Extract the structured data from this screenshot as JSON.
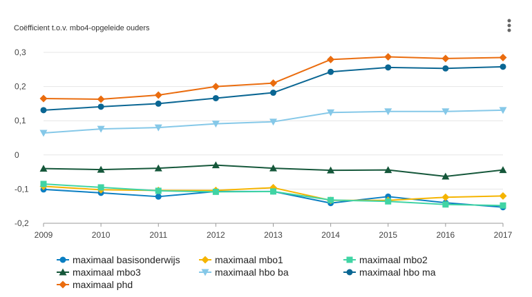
{
  "chart_data": {
    "type": "line",
    "ylabel": "Coëfficient t.o.v. mbo4-opgeleide ouders",
    "x": [
      2009,
      2010,
      2011,
      2012,
      2013,
      2014,
      2015,
      2016,
      2017
    ],
    "x_tick_labels": [
      "2009",
      "2010",
      "2011",
      "2012",
      "2013",
      "2014",
      "2015",
      "2016",
      "2017"
    ],
    "ylim": [
      -0.2,
      0.3
    ],
    "y_ticks": [
      -0.2,
      -0.1,
      0,
      0.1,
      0.2,
      0.3
    ],
    "y_tick_labels": [
      "-0,2",
      "-0,1",
      "0",
      "0,1",
      "0,2",
      "0,3"
    ],
    "grid": "horizontal",
    "legend_position": "bottom",
    "series": [
      {
        "name": "maximaal basisonderwijs",
        "color": "#0a7ec2",
        "marker": "circle",
        "values": [
          -0.101,
          -0.111,
          -0.122,
          -0.107,
          -0.107,
          -0.141,
          -0.122,
          -0.14,
          -0.153
        ]
      },
      {
        "name": "maximaal mbo1",
        "color": "#f5b400",
        "marker": "diamond",
        "values": [
          -0.092,
          -0.102,
          -0.104,
          -0.104,
          -0.096,
          -0.133,
          -0.133,
          -0.124,
          -0.12
        ]
      },
      {
        "name": "maximaal mbo2",
        "color": "#40d4a4",
        "marker": "square",
        "values": [
          -0.085,
          -0.095,
          -0.105,
          -0.108,
          -0.107,
          -0.132,
          -0.136,
          -0.145,
          -0.148
        ]
      },
      {
        "name": "maximaal mbo3",
        "color": "#15573a",
        "marker": "triangle-up",
        "values": [
          -0.04,
          -0.043,
          -0.039,
          -0.03,
          -0.039,
          -0.045,
          -0.044,
          -0.063,
          -0.044
        ]
      },
      {
        "name": "maximaal hbo ba",
        "color": "#85c8e8",
        "marker": "triangle-down",
        "values": [
          0.064,
          0.076,
          0.08,
          0.091,
          0.097,
          0.124,
          0.127,
          0.127,
          0.131
        ]
      },
      {
        "name": "maximaal hbo ma",
        "color": "#0a6693",
        "marker": "circle",
        "values": [
          0.131,
          0.141,
          0.15,
          0.166,
          0.182,
          0.243,
          0.256,
          0.253,
          0.258
        ]
      },
      {
        "name": "maximaal phd",
        "color": "#ea6c0e",
        "marker": "diamond",
        "values": [
          0.165,
          0.163,
          0.175,
          0.2,
          0.21,
          0.279,
          0.287,
          0.282,
          0.285
        ]
      }
    ]
  },
  "menu": {
    "icon": "kebab-menu-icon"
  }
}
